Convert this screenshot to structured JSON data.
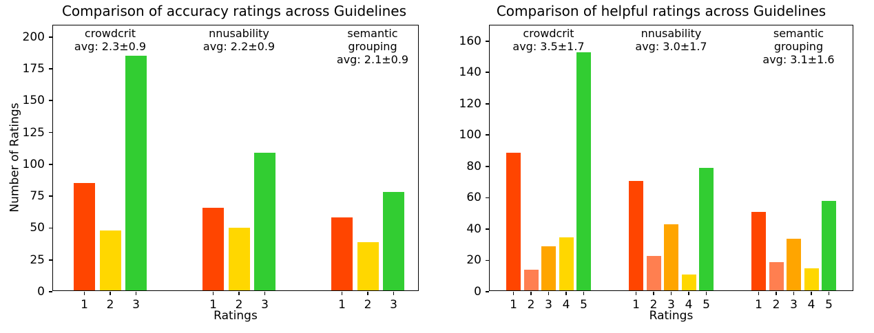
{
  "figure": {
    "background": "#ffffff",
    "text_color": "#000000"
  },
  "chart_data": [
    {
      "type": "bar",
      "title": "Comparison of accuracy ratings across Guidelines",
      "xlabel": "Ratings",
      "ylabel": "Number of Ratings",
      "ylim": [
        0,
        209
      ],
      "yticks": [
        0,
        25,
        50,
        75,
        100,
        125,
        150,
        175,
        200
      ],
      "categories": [
        "1",
        "2",
        "3"
      ],
      "bar_colors": [
        "#FF4500",
        "#FFD700",
        "#32CD32"
      ],
      "grid": false,
      "legend": "none",
      "annotation_position": "top-inside",
      "groups": [
        {
          "name": "crowdcrit",
          "label_lines": [
            "crowdcrit"
          ],
          "avg_label": "avg: 2.3±0.9",
          "values": [
            84,
            47,
            184
          ]
        },
        {
          "name": "nnusability",
          "label_lines": [
            "nnusability"
          ],
          "avg_label": "avg: 2.2±0.9",
          "values": [
            65,
            49,
            108
          ]
        },
        {
          "name": "semantic-grouping",
          "label_lines": [
            "semantic",
            "grouping"
          ],
          "avg_label": "avg: 2.1±0.9",
          "values": [
            57,
            38,
            77
          ]
        }
      ]
    },
    {
      "type": "bar",
      "title": "Comparison of helpful ratings across Guidelines",
      "xlabel": "Ratings",
      "ylabel": null,
      "ylim": [
        0,
        170
      ],
      "yticks": [
        0,
        20,
        40,
        60,
        80,
        100,
        120,
        140,
        160
      ],
      "categories": [
        "1",
        "2",
        "3",
        "4",
        "5"
      ],
      "bar_colors": [
        "#FF4500",
        "#FF7F50",
        "#FFA500",
        "#FFD700",
        "#32CD32"
      ],
      "grid": false,
      "legend": "none",
      "annotation_position": "top-inside",
      "groups": [
        {
          "name": "crowdcrit",
          "label_lines": [
            "crowdcrit"
          ],
          "avg_label": "avg: 3.5±1.7",
          "values": [
            88,
            13,
            28,
            34,
            152
          ]
        },
        {
          "name": "nnusability",
          "label_lines": [
            "nnusability"
          ],
          "avg_label": "avg: 3.0±1.7",
          "values": [
            70,
            22,
            42,
            10,
            78
          ]
        },
        {
          "name": "semantic-grouping",
          "label_lines": [
            "semantic",
            "grouping"
          ],
          "avg_label": "avg: 3.1±1.6",
          "values": [
            50,
            18,
            33,
            14,
            57
          ]
        }
      ]
    }
  ]
}
